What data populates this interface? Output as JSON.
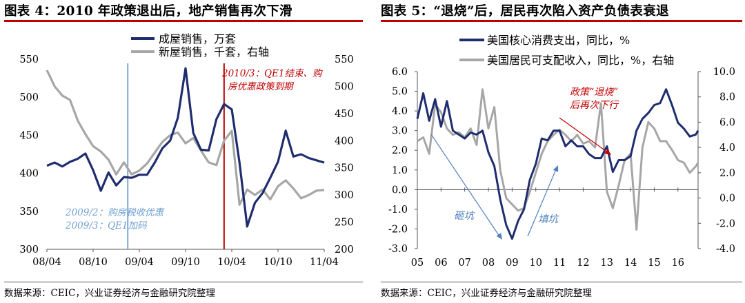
{
  "panel1": {
    "title": "图表 4：2010 年政策退出后，地产销售再次下滑",
    "source": "数据来源：CEIC，兴业证券经济与金融研究院整理"
  },
  "panel2": {
    "title": "图表 5：“退烧”后，居民再次陷入资产负债表衰退",
    "source": "数据来源：CEIC，兴业证券经济与金融研究院整理"
  },
  "chart_data": [
    {
      "type": "line",
      "title": "2010 年政策退出后，地产销售再次下滑",
      "categories": [
        "08/04",
        "08/10",
        "09/04",
        "09/10",
        "10/04",
        "10/10",
        "11/04"
      ],
      "y_left": {
        "min": 300,
        "max": 550,
        "ticks": [
          300,
          350,
          400,
          450,
          500,
          550
        ]
      },
      "y_right": {
        "min": 200,
        "max": 550,
        "ticks": [
          200,
          250,
          300,
          350,
          400,
          450,
          500,
          550
        ]
      },
      "x_range": [
        0,
        36
      ],
      "legend": [
        "成屋销售，万套",
        "新屋销售，千套，右轴"
      ],
      "legend_position": "top-right",
      "series": [
        {
          "name": "成屋销售，万套",
          "axis": "left",
          "color": "#1f2c6e",
          "x": [
            0,
            1,
            2,
            3,
            4,
            5,
            6,
            7,
            8,
            9,
            10,
            11,
            12,
            13,
            14,
            15,
            16,
            17,
            18,
            19,
            20,
            21,
            22,
            23,
            24,
            25,
            26,
            27,
            28,
            29,
            30,
            31,
            32,
            33,
            34,
            35,
            36
          ],
          "y": [
            410,
            414,
            409,
            415,
            419,
            426,
            404,
            377,
            401,
            384,
            395,
            394,
            398,
            398,
            414,
            433,
            443,
            473,
            538,
            453,
            431,
            430,
            471,
            491,
            484,
            414,
            330,
            361,
            374,
            394,
            415,
            456,
            422,
            425,
            420,
            417,
            414
          ]
        },
        {
          "name": "新屋销售，千套，右轴",
          "axis": "right",
          "color": "#a6a6a6",
          "x": [
            0,
            1,
            2,
            3,
            4,
            5,
            6,
            7,
            8,
            9,
            10,
            11,
            12,
            13,
            14,
            15,
            16,
            17,
            18,
            19,
            20,
            21,
            22,
            23,
            24,
            25,
            26,
            27,
            28,
            29,
            30,
            31,
            32,
            33,
            34,
            35,
            36
          ],
          "y": [
            530,
            500,
            483,
            475,
            437,
            412,
            390,
            380,
            365,
            338,
            360,
            338,
            345,
            358,
            378,
            398,
            410,
            415,
            395,
            405,
            382,
            360,
            355,
            400,
            418,
            282,
            310,
            300,
            310,
            292,
            316,
            327,
            312,
            294,
            300,
            308,
            309
          ]
        }
      ],
      "vlines": [
        {
          "x": 10.5,
          "color": "#6f9fd0"
        },
        {
          "x": 23,
          "color": "#c00000"
        }
      ],
      "annotations": [
        {
          "text": "2010/3：QE1结束、购",
          "color": "#c00000"
        },
        {
          "text": "房优惠政策到期",
          "color": "#c00000"
        },
        {
          "text": "2009/2：购房税收优惠",
          "color": "#6f9fd0"
        },
        {
          "text": "2009/3：QE1加码",
          "color": "#6f9fd0"
        }
      ]
    },
    {
      "type": "line",
      "title": "“退烧”后，居民再次陷入资产负债表衰退",
      "categories": [
        "05",
        "06",
        "07",
        "08",
        "09",
        "10",
        "11",
        "12",
        "13",
        "14",
        "15",
        "16"
      ],
      "y_left": {
        "min": -3.0,
        "max": 6.0,
        "ticks": [
          "-3.0",
          "-2.0",
          "-1.0",
          "0.0",
          "1.0",
          "2.0",
          "3.0",
          "4.0",
          "5.0",
          "6.0"
        ]
      },
      "y_right": {
        "min": -4.0,
        "max": 10.0,
        "ticks": [
          "-4.0",
          "-2.0",
          "0.0",
          "2.0",
          "4.0",
          "6.0",
          "8.0",
          "10.0"
        ]
      },
      "x_range": [
        2005,
        2016.85
      ],
      "legend": [
        "美国核心消费支出，同比，%",
        "美国居民可支配收入，同比，%，右轴"
      ],
      "legend_position": "top-right",
      "series": [
        {
          "name": "美国核心消费支出，同比，%",
          "axis": "left",
          "color": "#1f2c6e",
          "x": [
            2005,
            2005.25,
            2005.5,
            2005.75,
            2006,
            2006.25,
            2006.5,
            2006.75,
            2007,
            2007.25,
            2007.5,
            2007.75,
            2008,
            2008.25,
            2008.5,
            2008.75,
            2009,
            2009.25,
            2009.5,
            2009.75,
            2010,
            2010.25,
            2010.5,
            2010.75,
            2011,
            2011.25,
            2011.5,
            2011.75,
            2012,
            2012.25,
            2012.5,
            2012.75,
            2013,
            2013.25,
            2013.5,
            2013.75,
            2014,
            2014.25,
            2014.5,
            2014.75,
            2015,
            2015.25,
            2015.5,
            2015.75,
            2016,
            2016.25,
            2016.5,
            2016.75,
            2016.85
          ],
          "y": [
            3.6,
            4.9,
            3.5,
            4.6,
            3.2,
            4.5,
            3.0,
            2.8,
            2.6,
            2.9,
            2.8,
            3.0,
            1.9,
            1.2,
            -0.5,
            -1.8,
            -2.5,
            -1.6,
            -1.0,
            0.5,
            1.3,
            2.6,
            2.5,
            3.0,
            3.0,
            2.2,
            2.5,
            2.2,
            2.2,
            1.8,
            1.6,
            1.6,
            2.2,
            0.9,
            1.5,
            1.5,
            1.7,
            3.0,
            3.6,
            3.9,
            4.3,
            4.4,
            5.1,
            4.3,
            3.4,
            3.1,
            2.7,
            2.8,
            3.0
          ]
        },
        {
          "name": "美国居民可支配收入，同比，%，右轴",
          "axis": "right",
          "color": "#a6a6a6",
          "x": [
            2005,
            2005.25,
            2005.5,
            2005.75,
            2006,
            2006.25,
            2006.5,
            2006.75,
            2007,
            2007.25,
            2007.5,
            2007.75,
            2008,
            2008.25,
            2008.5,
            2008.75,
            2009,
            2009.25,
            2009.5,
            2009.75,
            2010,
            2010.25,
            2010.5,
            2010.75,
            2011,
            2011.25,
            2011.5,
            2011.75,
            2012,
            2012.25,
            2012.5,
            2012.75,
            2013,
            2013.25,
            2013.5,
            2013.75,
            2014,
            2014.25,
            2014.5,
            2014.75,
            2015,
            2015.25,
            2015.5,
            2015.75,
            2016,
            2016.25,
            2016.5,
            2016.75,
            2016.85
          ],
          "y": [
            4.5,
            4.8,
            3.5,
            7.4,
            6.8,
            5.5,
            5.0,
            5.2,
            4.8,
            5.5,
            4.2,
            8.6,
            5.5,
            7.2,
            2.2,
            0.0,
            -0.5,
            -1.0,
            -0.8,
            0.5,
            2.0,
            3.5,
            4.5,
            5.0,
            5.4,
            5.0,
            4.5,
            5.0,
            4.3,
            4.5,
            4.0,
            7.5,
            0.5,
            -0.8,
            1.0,
            3.0,
            3.5,
            -2.5,
            4.0,
            6.0,
            5.5,
            4.5,
            4.5,
            3.8,
            3.0,
            2.8,
            2.0,
            2.5,
            2.8
          ]
        }
      ],
      "annotations": [
        {
          "text": "政策“退烧”",
          "color": "#c00000"
        },
        {
          "text": "后再次下行",
          "color": "#c00000"
        },
        {
          "text": "砸坑",
          "color": "#4f81bd"
        },
        {
          "text": "填坑",
          "color": "#4f81bd"
        }
      ]
    }
  ]
}
